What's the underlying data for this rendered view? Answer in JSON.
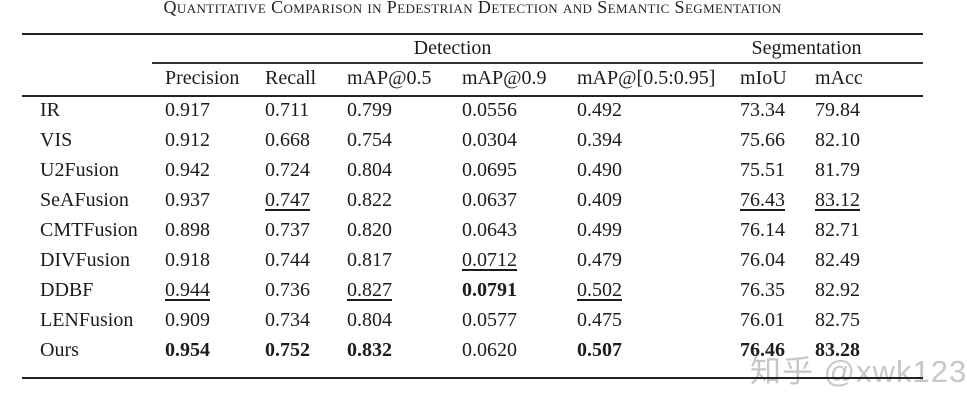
{
  "page": {
    "title": "Quantitative Comparison in Pedestrian Detection and Semantic Segmentation",
    "watermark": "知乎 @xwk123"
  },
  "table": {
    "group_headers": {
      "detection": "Detection",
      "segmentation": "Segmentation"
    },
    "columns": [
      "Precision",
      "Recall",
      "mAP@0.5",
      "mAP@0.9",
      "mAP@[0.5:0.95]",
      "mIoU",
      "mAcc"
    ],
    "rows": [
      {
        "method": "IR",
        "cells": [
          {
            "v": "0.917"
          },
          {
            "v": "0.711"
          },
          {
            "v": "0.799"
          },
          {
            "v": "0.0556"
          },
          {
            "v": "0.492"
          },
          {
            "v": "73.34"
          },
          {
            "v": "79.84"
          }
        ]
      },
      {
        "method": "VIS",
        "cells": [
          {
            "v": "0.912"
          },
          {
            "v": "0.668"
          },
          {
            "v": "0.754"
          },
          {
            "v": "0.0304"
          },
          {
            "v": "0.394"
          },
          {
            "v": "75.66"
          },
          {
            "v": "82.10"
          }
        ]
      },
      {
        "method": "U2Fusion",
        "cells": [
          {
            "v": "0.942"
          },
          {
            "v": "0.724"
          },
          {
            "v": "0.804"
          },
          {
            "v": "0.0695"
          },
          {
            "v": "0.490"
          },
          {
            "v": "75.51"
          },
          {
            "v": "81.79"
          }
        ]
      },
      {
        "method": "SeAFusion",
        "cells": [
          {
            "v": "0.937"
          },
          {
            "v": "0.747",
            "s": "u"
          },
          {
            "v": "0.822"
          },
          {
            "v": "0.0637"
          },
          {
            "v": "0.409"
          },
          {
            "v": "76.43",
            "s": "u"
          },
          {
            "v": "83.12",
            "s": "u"
          }
        ]
      },
      {
        "method": "CMTFusion",
        "cells": [
          {
            "v": "0.898"
          },
          {
            "v": "0.737"
          },
          {
            "v": "0.820"
          },
          {
            "v": "0.0643"
          },
          {
            "v": "0.499"
          },
          {
            "v": "76.14"
          },
          {
            "v": "82.71"
          }
        ]
      },
      {
        "method": "DIVFusion",
        "cells": [
          {
            "v": "0.918"
          },
          {
            "v": "0.744"
          },
          {
            "v": "0.817"
          },
          {
            "v": "0.0712",
            "s": "u"
          },
          {
            "v": "0.479"
          },
          {
            "v": "76.04"
          },
          {
            "v": "82.49"
          }
        ]
      },
      {
        "method": "DDBF",
        "cells": [
          {
            "v": "0.944",
            "s": "u"
          },
          {
            "v": "0.736"
          },
          {
            "v": "0.827",
            "s": "u"
          },
          {
            "v": "0.0791",
            "s": "b"
          },
          {
            "v": "0.502",
            "s": "u"
          },
          {
            "v": "76.35"
          },
          {
            "v": "82.92"
          }
        ]
      },
      {
        "method": "LENFusion",
        "cells": [
          {
            "v": "0.909"
          },
          {
            "v": "0.734"
          },
          {
            "v": "0.804"
          },
          {
            "v": "0.0577"
          },
          {
            "v": "0.475"
          },
          {
            "v": "76.01"
          },
          {
            "v": "82.75"
          }
        ]
      },
      {
        "method": "Ours",
        "cells": [
          {
            "v": "0.954",
            "s": "b"
          },
          {
            "v": "0.752",
            "s": "b"
          },
          {
            "v": "0.832",
            "s": "b"
          },
          {
            "v": "0.0620"
          },
          {
            "v": "0.507",
            "s": "b"
          },
          {
            "v": "76.46",
            "s": "b"
          },
          {
            "v": "83.28",
            "s": "b"
          }
        ]
      }
    ]
  }
}
